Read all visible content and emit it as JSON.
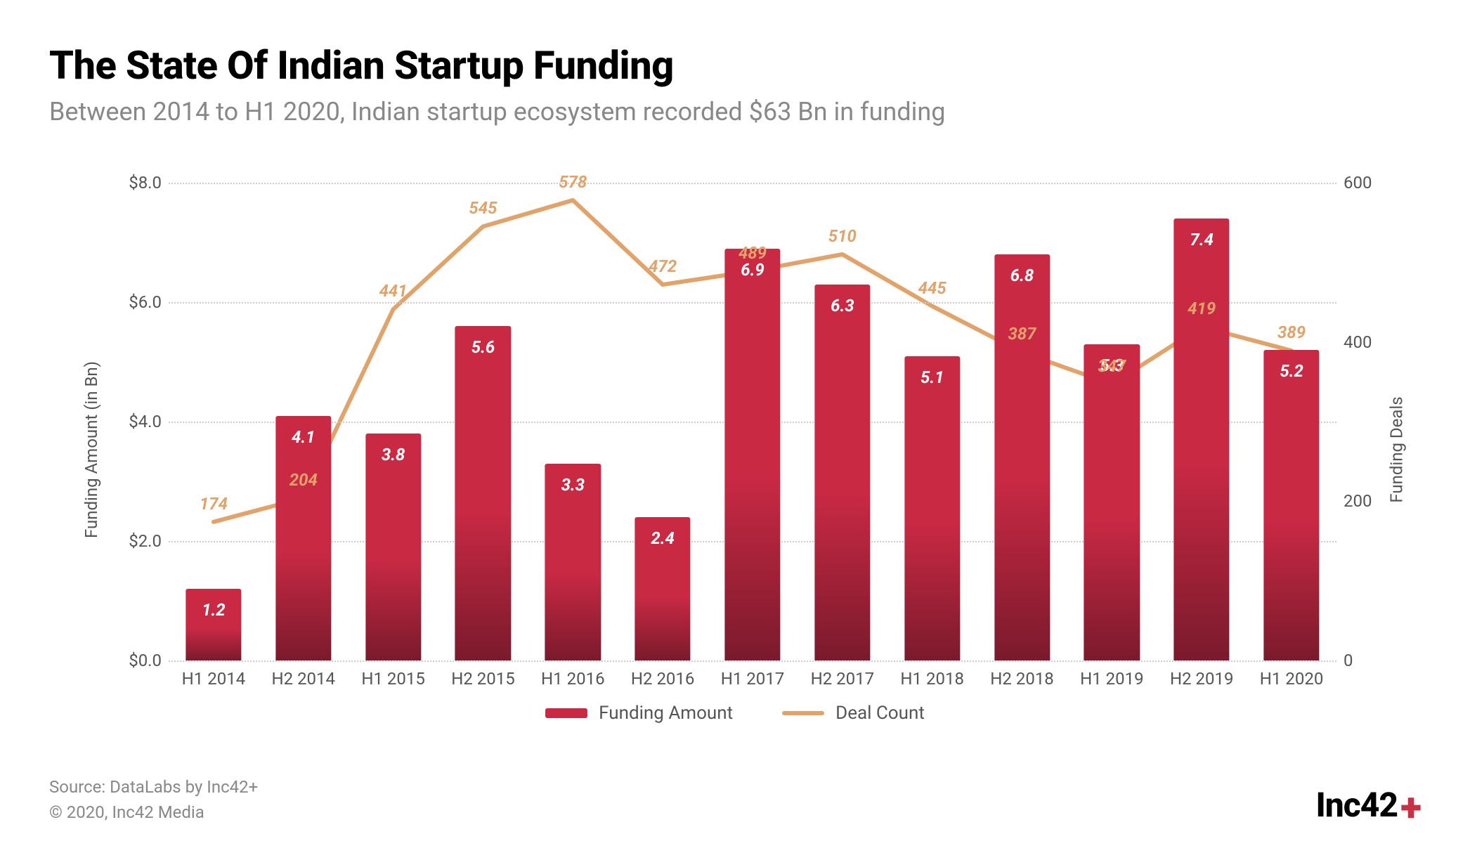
{
  "title": "The State Of Indian Startup Funding",
  "subtitle": "Between 2014 to H1 2020, Indian startup ecosystem recorded $63 Bn in funding",
  "chart": {
    "type": "bar+line",
    "background_color": "#ffffff",
    "grid_color": "#cccccc",
    "y_left": {
      "label": "Funding Amount (in Bn)",
      "min": 0,
      "max": 8,
      "step": 2,
      "tick_prefix": "$",
      "tick_decimals": 1,
      "font_size": 24,
      "color": "#555555"
    },
    "y_right": {
      "label": "Funding Deals",
      "min": 0,
      "max": 600,
      "step": 200,
      "font_size": 24,
      "color": "#555555"
    },
    "categories": [
      "H1 2014",
      "H2 2014",
      "H1 2015",
      "H2 2015",
      "H1 2016",
      "H2 2016",
      "H1 2017",
      "H2 2017",
      "H1 2018",
      "H2 2018",
      "H1 2019",
      "H2 2019",
      "H1 2020"
    ],
    "bars": {
      "label": "Funding Amount",
      "values": [
        1.2,
        4.1,
        3.8,
        5.6,
        3.3,
        2.4,
        6.9,
        6.3,
        5.1,
        6.8,
        5.3,
        7.4,
        5.2
      ],
      "value_labels": [
        "1.2",
        "4.1",
        "3.8",
        "5.6",
        "3.3",
        "2.4",
        "6.9",
        "6.3",
        "5.1",
        "6.8",
        "5.3",
        "7.4",
        "5.2"
      ],
      "color_top": "#ca2944",
      "color_bottom": "#7a1a2c",
      "bar_width_frac": 0.62,
      "label_color": "#ffffff",
      "label_font_size": 24,
      "label_font_style": "italic",
      "label_font_weight": 700
    },
    "line": {
      "label": "Deal Count",
      "values": [
        174,
        204,
        441,
        545,
        578,
        472,
        489,
        510,
        445,
        387,
        347,
        419,
        389
      ],
      "value_labels": [
        "174",
        "204",
        "441",
        "545",
        "578",
        "472",
        "489",
        "510",
        "445",
        "387",
        "347",
        "419",
        "389"
      ],
      "color": "#e2a36a",
      "label_color": "#e2a36a",
      "line_width": 6,
      "label_font_size": 24,
      "label_font_style": "italic",
      "label_font_weight": 700
    },
    "x_axis": {
      "font_size": 24,
      "color": "#555555"
    },
    "legend": {
      "items": [
        {
          "kind": "bar",
          "label": "Funding Amount",
          "color": "#ca2944"
        },
        {
          "kind": "line",
          "label": "Deal Count",
          "color": "#e2a36a"
        }
      ],
      "font_size": 26,
      "color": "#555555"
    }
  },
  "footer": {
    "source": "Source: DataLabs by Inc42+",
    "copyright": "© 2020, Inc42 Media"
  },
  "brand": {
    "name": "Inc42",
    "suffix": "+",
    "color": "#000000",
    "accent": "#c83046"
  }
}
